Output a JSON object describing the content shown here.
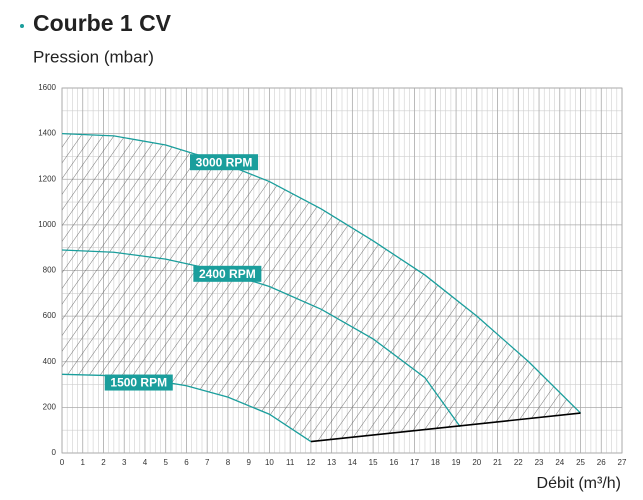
{
  "chart_data": {
    "type": "line",
    "title": "Courbe 1 CV",
    "subtitle": "Pression (mbar)",
    "x_label": "Débit (m³/h)",
    "xlim": [
      0,
      27
    ],
    "xticks": [
      0,
      1,
      2,
      3,
      4,
      5,
      6,
      7,
      8,
      9,
      10,
      11,
      12,
      13,
      14,
      15,
      16,
      17,
      18,
      19,
      20,
      21,
      22,
      23,
      24,
      25,
      26,
      27
    ],
    "ylim": [
      0,
      1600
    ],
    "yticks": [
      0,
      200,
      400,
      600,
      800,
      1000,
      1200,
      1400,
      1600
    ],
    "grid": true,
    "series": [
      {
        "name": "3000 RPM",
        "color": "#1a9e9c",
        "x": [
          0,
          2.5,
          5,
          7.5,
          10,
          12.5,
          15,
          17.5,
          20,
          22.5,
          25
        ],
        "values": [
          1400,
          1390,
          1350,
          1280,
          1190,
          1070,
          930,
          780,
          600,
          400,
          175
        ]
      },
      {
        "name": "2400 RPM",
        "color": "#1a9e9c",
        "x": [
          0,
          2.5,
          5,
          7.5,
          10,
          12.5,
          15,
          17.5,
          19.2
        ],
        "values": [
          890,
          880,
          850,
          800,
          730,
          630,
          500,
          330,
          115
        ]
      },
      {
        "name": "1500 RPM",
        "color": "#1a9e9c",
        "x": [
          0,
          2,
          4,
          6,
          8,
          10,
          12
        ],
        "values": [
          345,
          340,
          325,
          295,
          245,
          170,
          50
        ]
      },
      {
        "color": "#000000",
        "x": [
          12,
          25
        ],
        "values": [
          50,
          175
        ]
      }
    ]
  }
}
